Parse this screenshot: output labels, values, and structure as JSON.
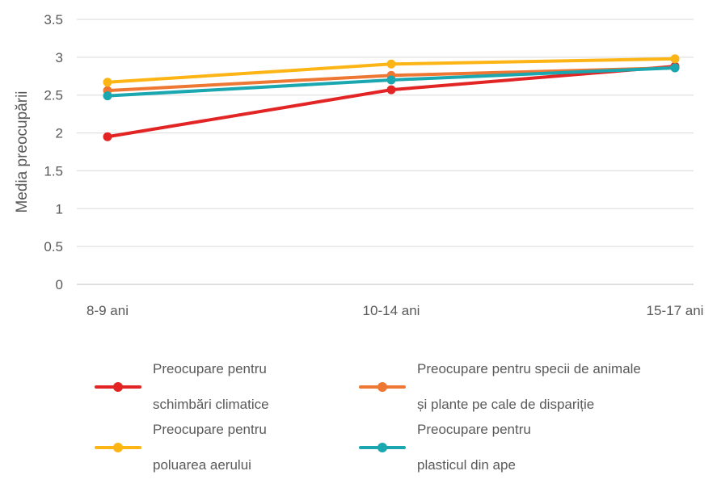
{
  "chart_data": {
    "type": "line",
    "title": "",
    "xlabel": "",
    "ylabel": "Media preocupării",
    "categories": [
      "8-9 ani",
      "10-14 ani",
      "15-17 ani"
    ],
    "ylim": [
      0,
      3.5
    ],
    "yticks": [
      "0",
      "0.5",
      "1",
      "1.5",
      "2",
      "2.5",
      "3",
      "3.5"
    ],
    "grid": true,
    "legend_position": "bottom",
    "series": [
      {
        "name": "Preocupare pentru schimbări climatice",
        "color": "#E32424",
        "values": [
          1.95,
          2.57,
          2.88
        ]
      },
      {
        "name": "Preocupare pentru specii de animale și plante pe cale de dispariție",
        "color": "#EE7733",
        "values": [
          2.56,
          2.76,
          2.86
        ]
      },
      {
        "name": "Preocupare pentru poluarea aerului",
        "color": "#FDB515",
        "values": [
          2.67,
          2.91,
          2.98
        ]
      },
      {
        "name": "Preocupare pentru plasticul din ape",
        "color": "#1AA7B0",
        "values": [
          2.49,
          2.7,
          2.86
        ]
      }
    ]
  },
  "legend": {
    "items": [
      {
        "line1": "Preocupare pentru",
        "line2": "schimbări climatice"
      },
      {
        "line1": "Preocupare pentru specii de animale",
        "line2": "și plante pe cale de dispariție"
      },
      {
        "line1": "Preocupare pentru",
        "line2": "poluarea aerului"
      },
      {
        "line1": "Preocupare pentru",
        "line2": "plasticul din ape"
      }
    ]
  }
}
